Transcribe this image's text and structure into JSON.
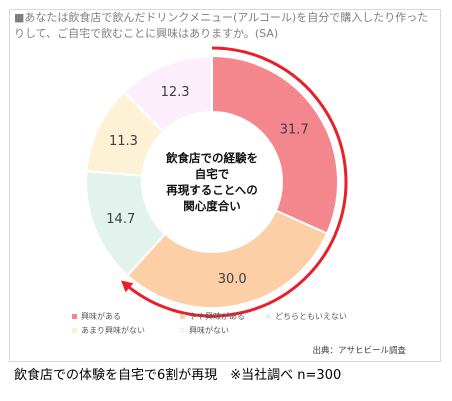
{
  "question": "■あなたは飲食店で飲んだドリンクメニュー(アルコール)を自分で購入したり作ったりして、ご自宅で飲むことに興味はありますか。(SA)",
  "chart_data": {
    "type": "pie",
    "donut": true,
    "start": "12 o'clock",
    "direction": "clockwise",
    "center_label": [
      "飲食店での経験を",
      "自宅で",
      "再現することへの",
      "関心度合い"
    ],
    "categories": [
      "興味がある",
      "やや興味がある",
      "どちらともいえない",
      "あまり興味がない",
      "興味がない"
    ],
    "values": [
      31.7,
      30.0,
      14.7,
      11.3,
      12.3
    ],
    "colors": [
      "#f4868e",
      "#fccfa6",
      "#e1f3ec",
      "#fdf2d6",
      "#fdeefb"
    ],
    "highlight_arrow_color": "#e8202a"
  },
  "legend": {
    "row1": [
      "興味がある",
      "やや興味がある",
      "どちらともいえない"
    ],
    "row2": [
      "あまり興味がない",
      "興味がない"
    ]
  },
  "source": "出典：アサヒビール調査",
  "caption": "飲食店での体験を自宅で6割が再現　※当社調べ n=300"
}
